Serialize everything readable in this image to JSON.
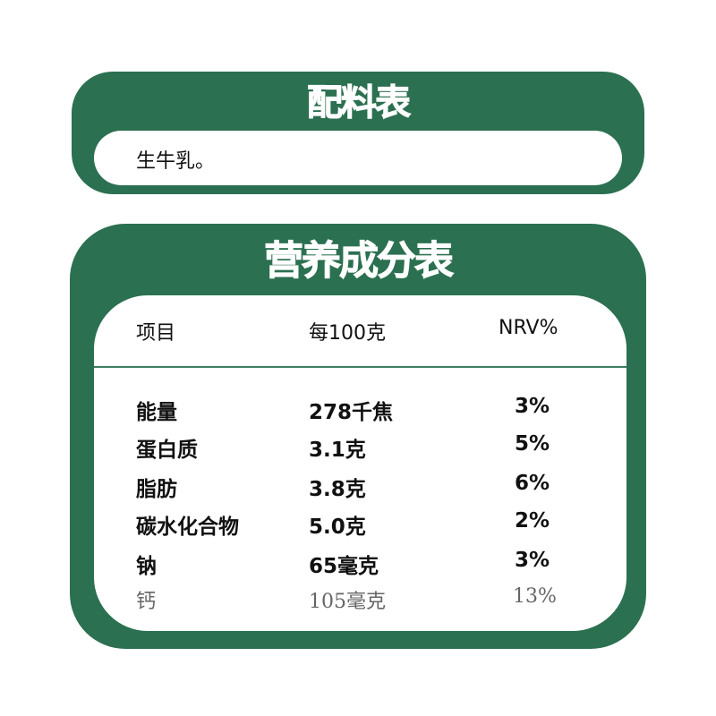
{
  "ingredients": {
    "title": "配料表",
    "text": "生牛乳。"
  },
  "nutrition": {
    "title": "营养成分表",
    "headers": [
      "项目",
      "每100克",
      "NRV%"
    ],
    "rows": [
      {
        "item": "能量",
        "per100g": "278千焦",
        "nrv": "3%"
      },
      {
        "item": "蛋白质",
        "per100g": "3.1克",
        "nrv": "5%"
      },
      {
        "item": "脂肪",
        "per100g": "3.8克",
        "nrv": "6%"
      },
      {
        "item": "碳水化合物",
        "per100g": "5.0克",
        "nrv": "2%"
      },
      {
        "item": "钠",
        "per100g": "65毫克",
        "nrv": "3%"
      },
      {
        "item": "钙",
        "per100g": "105毫克",
        "nrv": "13%"
      }
    ]
  },
  "colors": {
    "brand_green": "#2b7050"
  }
}
